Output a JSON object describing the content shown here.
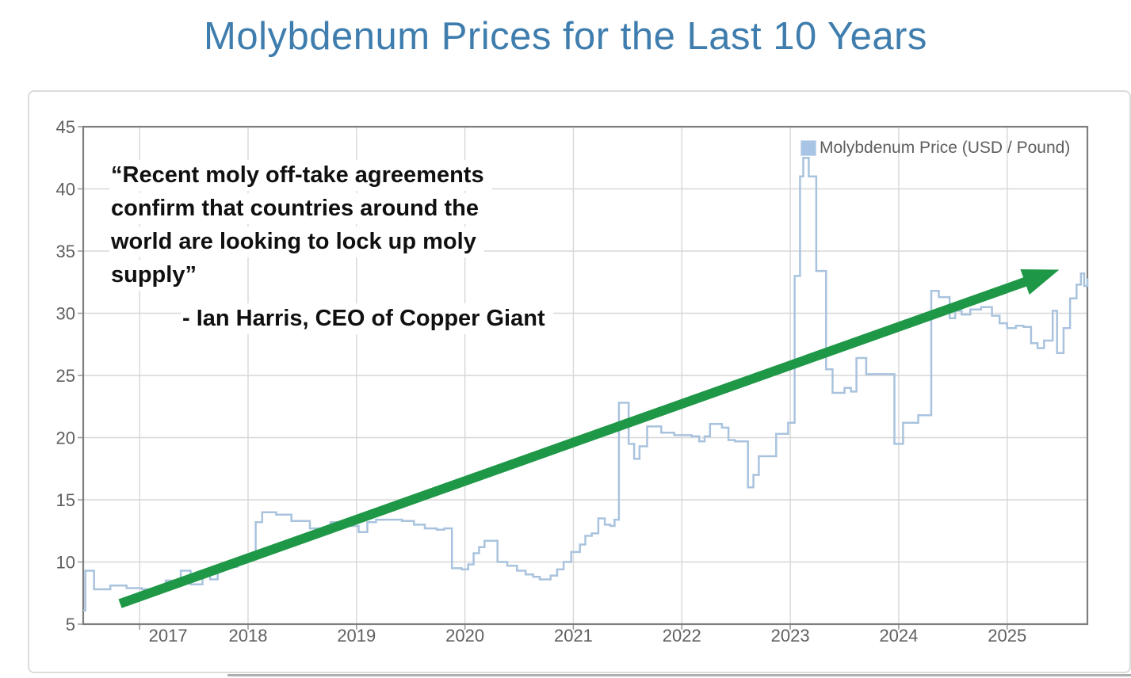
{
  "title": "Molybdenum Prices for the Last 10 Years",
  "quote": {
    "lines": [
      "“Recent moly off-take agreements",
      "confirm that countries around the",
      "world are looking to lock up moly",
      "supply”"
    ],
    "attribution": "- Ian Harris, CEO of Copper Giant"
  },
  "legend": {
    "label": "Molybdenum Price (USD / Pound)",
    "swatch_color": "#a9c5e6"
  },
  "colors": {
    "title_text": "#3e7dad",
    "price_line": "#a9c3de",
    "trend_arrow": "#1e9847",
    "gridline": "#d7d7d7",
    "plot_border": "#7e7e7e",
    "tick_text": "#5f5f5f",
    "tick_mark": "#9a9a9a"
  },
  "chart_data": {
    "type": "line",
    "title": "Molybdenum Prices for the Last 10 Years",
    "series_name": "Molybdenum Price (USD / Pound)",
    "step": true,
    "grid": true,
    "legend_position": "top-right",
    "x_axis": {
      "range": [
        2016.48,
        2025.74
      ],
      "ticks": [
        2017,
        2018,
        2019,
        2020,
        2021,
        2022,
        2023,
        2024,
        2025
      ]
    },
    "y_axis": {
      "range": [
        5,
        45
      ],
      "ticks": [
        5,
        10,
        15,
        20,
        25,
        30,
        35,
        40,
        45
      ],
      "unit": "USD / Pound"
    },
    "points": [
      [
        2016.48,
        6.1
      ],
      [
        2016.5,
        9.3
      ],
      [
        2016.58,
        7.8
      ],
      [
        2016.73,
        8.1
      ],
      [
        2016.88,
        7.9
      ],
      [
        2017.02,
        7.8
      ],
      [
        2017.15,
        7.7
      ],
      [
        2017.24,
        8.5
      ],
      [
        2017.38,
        9.3
      ],
      [
        2017.47,
        8.2
      ],
      [
        2017.58,
        8.9
      ],
      [
        2017.65,
        8.6
      ],
      [
        2017.72,
        9.6
      ],
      [
        2017.9,
        10.2
      ],
      [
        2017.96,
        10.5
      ],
      [
        2018.02,
        10.2
      ],
      [
        2018.07,
        13.2
      ],
      [
        2018.13,
        14.0
      ],
      [
        2018.26,
        13.8
      ],
      [
        2018.4,
        13.3
      ],
      [
        2018.57,
        12.7
      ],
      [
        2018.76,
        13.2
      ],
      [
        2018.94,
        12.9
      ],
      [
        2019.02,
        12.4
      ],
      [
        2019.1,
        13.2
      ],
      [
        2019.18,
        13.4
      ],
      [
        2019.42,
        13.3
      ],
      [
        2019.53,
        13.0
      ],
      [
        2019.63,
        12.7
      ],
      [
        2019.74,
        12.6
      ],
      [
        2019.81,
        12.7
      ],
      [
        2019.88,
        9.5
      ],
      [
        2019.97,
        9.4
      ],
      [
        2020.03,
        9.8
      ],
      [
        2020.08,
        10.7
      ],
      [
        2020.13,
        11.2
      ],
      [
        2020.18,
        11.7
      ],
      [
        2020.3,
        10.0
      ],
      [
        2020.39,
        9.7
      ],
      [
        2020.48,
        9.3
      ],
      [
        2020.56,
        9.0
      ],
      [
        2020.63,
        8.8
      ],
      [
        2020.69,
        8.6
      ],
      [
        2020.79,
        8.9
      ],
      [
        2020.85,
        9.4
      ],
      [
        2020.91,
        10.0
      ],
      [
        2020.98,
        10.8
      ],
      [
        2021.06,
        11.4
      ],
      [
        2021.11,
        12.1
      ],
      [
        2021.17,
        12.3
      ],
      [
        2021.23,
        13.5
      ],
      [
        2021.29,
        13.0
      ],
      [
        2021.34,
        12.9
      ],
      [
        2021.38,
        13.4
      ],
      [
        2021.42,
        22.8
      ],
      [
        2021.51,
        19.5
      ],
      [
        2021.56,
        18.3
      ],
      [
        2021.61,
        19.3
      ],
      [
        2021.68,
        20.9
      ],
      [
        2021.81,
        20.4
      ],
      [
        2021.93,
        20.2
      ],
      [
        2022.09,
        20.1
      ],
      [
        2022.16,
        19.7
      ],
      [
        2022.21,
        20.1
      ],
      [
        2022.26,
        21.1
      ],
      [
        2022.37,
        20.8
      ],
      [
        2022.43,
        19.8
      ],
      [
        2022.49,
        19.7
      ],
      [
        2022.61,
        16.0
      ],
      [
        2022.66,
        17.0
      ],
      [
        2022.71,
        18.5
      ],
      [
        2022.87,
        20.3
      ],
      [
        2022.98,
        21.2
      ],
      [
        2023.04,
        33.0
      ],
      [
        2023.09,
        41.0
      ],
      [
        2023.12,
        42.5
      ],
      [
        2023.17,
        41.0
      ],
      [
        2023.24,
        33.4
      ],
      [
        2023.33,
        25.5
      ],
      [
        2023.39,
        23.6
      ],
      [
        2023.5,
        24.0
      ],
      [
        2023.56,
        23.7
      ],
      [
        2023.61,
        26.4
      ],
      [
        2023.7,
        25.1
      ],
      [
        2023.96,
        19.5
      ],
      [
        2024.04,
        21.2
      ],
      [
        2024.18,
        21.8
      ],
      [
        2024.3,
        31.8
      ],
      [
        2024.37,
        31.3
      ],
      [
        2024.47,
        29.6
      ],
      [
        2024.52,
        30.2
      ],
      [
        2024.58,
        29.9
      ],
      [
        2024.66,
        30.3
      ],
      [
        2024.76,
        30.5
      ],
      [
        2024.86,
        29.8
      ],
      [
        2024.93,
        29.2
      ],
      [
        2025.0,
        28.8
      ],
      [
        2025.08,
        29.0
      ],
      [
        2025.15,
        28.9
      ],
      [
        2025.22,
        27.6
      ],
      [
        2025.28,
        27.2
      ],
      [
        2025.34,
        27.8
      ],
      [
        2025.42,
        30.2
      ],
      [
        2025.46,
        26.8
      ],
      [
        2025.52,
        28.8
      ],
      [
        2025.58,
        31.2
      ],
      [
        2025.64,
        32.3
      ],
      [
        2025.68,
        33.2
      ],
      [
        2025.71,
        32.2
      ],
      [
        2025.74,
        32.8
      ]
    ]
  },
  "annotations": {
    "trend_arrow": {
      "from_year": 2016.82,
      "from_value": 6.65,
      "to_year": 2025.48,
      "to_value": 33.5,
      "color": "#1e9847"
    }
  }
}
